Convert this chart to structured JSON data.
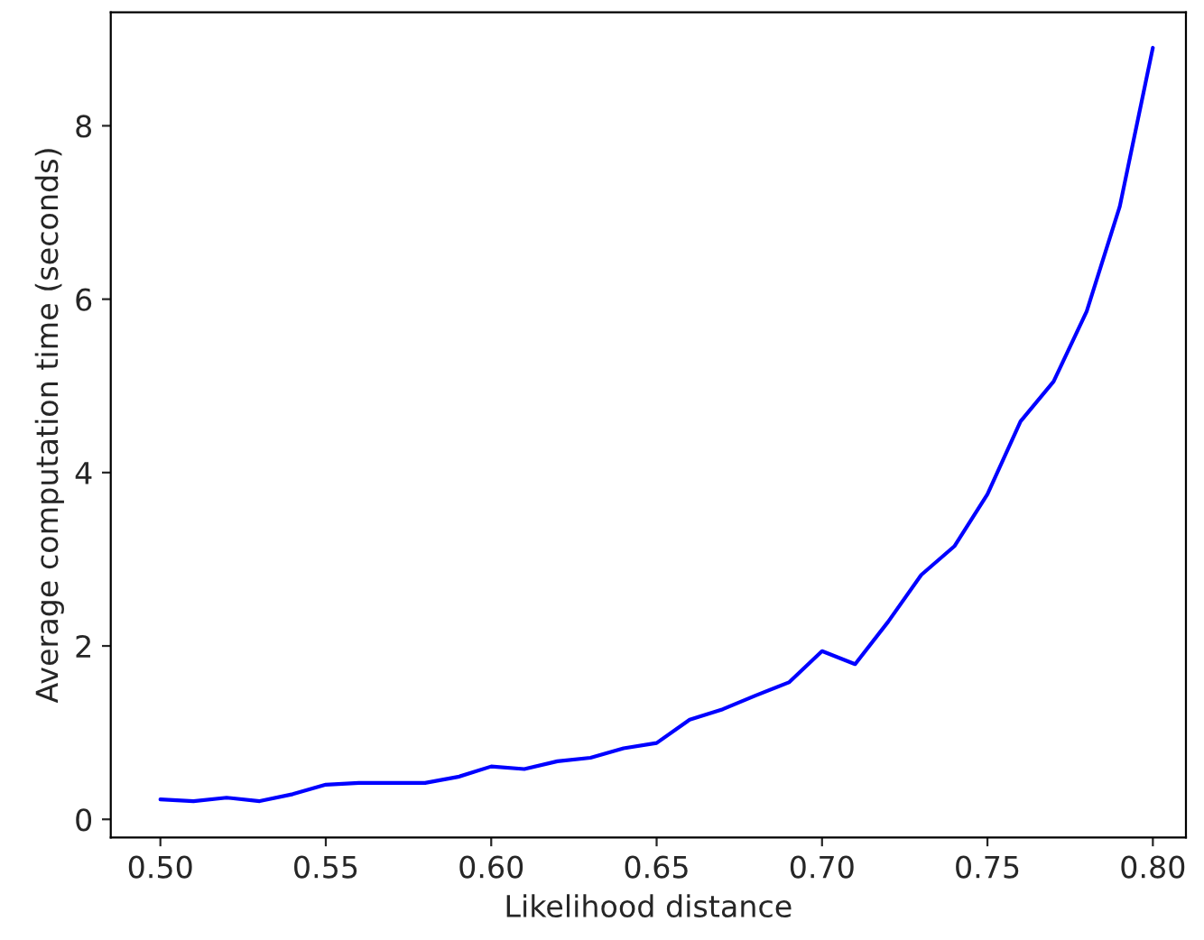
{
  "chart_data": {
    "type": "line",
    "xlabel": "Likelihood distance",
    "ylabel": "Average computation time (seconds)",
    "x": [
      0.5,
      0.51,
      0.52,
      0.53,
      0.54,
      0.55,
      0.56,
      0.57,
      0.58,
      0.59,
      0.6,
      0.61,
      0.62,
      0.63,
      0.64,
      0.65,
      0.66,
      0.67,
      0.68,
      0.69,
      0.7,
      0.71,
      0.72,
      0.73,
      0.74,
      0.75,
      0.76,
      0.77,
      0.78,
      0.79,
      0.8
    ],
    "series": [
      {
        "color": "#0000ff",
        "values": [
          0.23,
          0.21,
          0.25,
          0.21,
          0.29,
          0.4,
          0.42,
          0.42,
          0.42,
          0.49,
          0.61,
          0.58,
          0.67,
          0.71,
          0.82,
          0.88,
          1.15,
          1.27,
          1.43,
          1.58,
          1.94,
          1.79,
          2.28,
          2.82,
          3.15,
          3.75,
          4.59,
          5.05,
          5.86,
          7.07,
          8.9
        ]
      }
    ],
    "xlim": [
      0.485,
      0.81
    ],
    "xticks": [
      {
        "value": 0.5,
        "label": "0.50"
      },
      {
        "value": 0.55,
        "label": "0.55"
      },
      {
        "value": 0.6,
        "label": "0.60"
      },
      {
        "value": 0.65,
        "label": "0.65"
      },
      {
        "value": 0.7,
        "label": "0.70"
      },
      {
        "value": 0.75,
        "label": "0.75"
      },
      {
        "value": 0.8,
        "label": "0.80"
      }
    ],
    "ylim": [
      -0.21,
      9.31
    ],
    "yticks": [
      0,
      2,
      4,
      6,
      8
    ],
    "grid": false,
    "line_style": "solid",
    "marker": "none"
  }
}
